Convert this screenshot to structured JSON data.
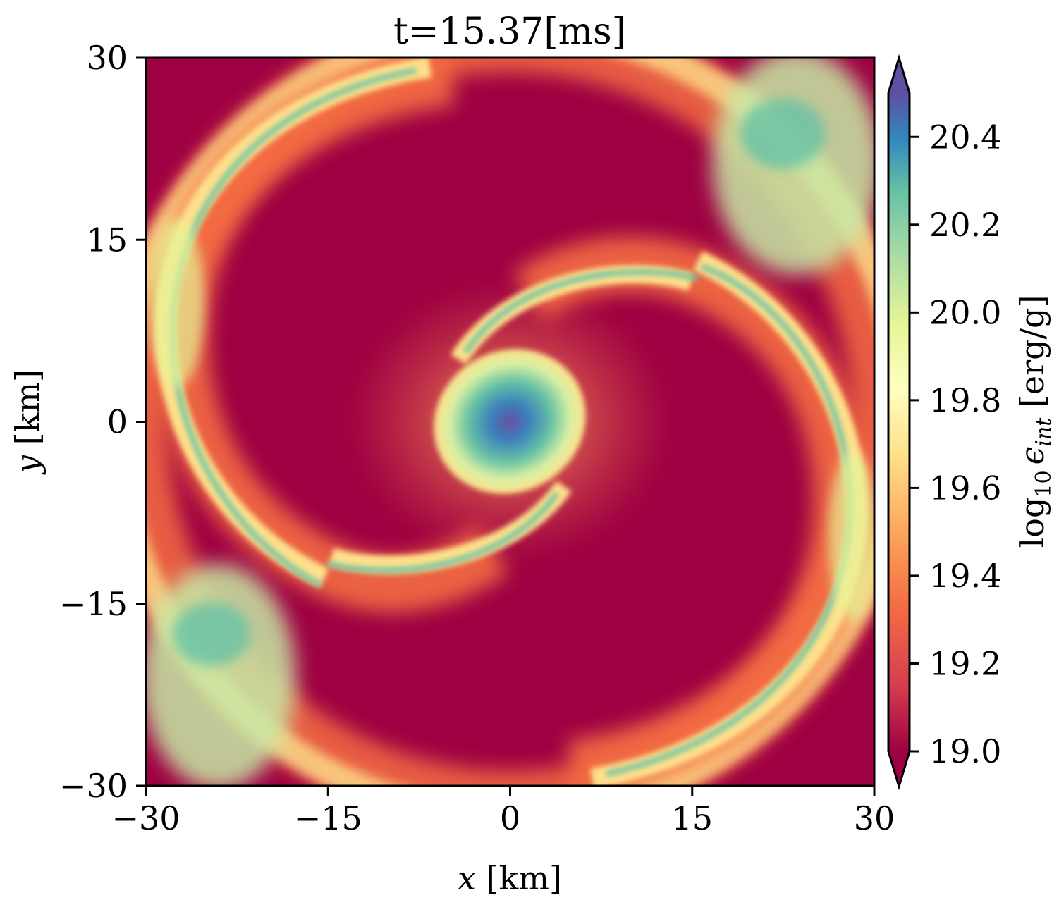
{
  "chart_data": {
    "type": "heatmap",
    "title": "t=15.37[ms]",
    "xlabel": {
      "var": "x",
      "unit": " [km]"
    },
    "ylabel": {
      "var": "y",
      "unit": " [km]"
    },
    "xlim": [
      -30,
      30
    ],
    "ylim": [
      -30,
      30
    ],
    "xticks": [
      "−30",
      "−15",
      "0",
      "15",
      "30"
    ],
    "yticks": [
      "−30",
      "−15",
      "0",
      "15",
      "30"
    ],
    "colorbar": {
      "label_prefix": "log",
      "label_sub": "10",
      "label_symbol": "ϵ",
      "label_symbol_sub": "int",
      "label_unit": " [erg/g]",
      "range": [
        19.0,
        20.4
      ],
      "ticks": [
        "19.0",
        "19.2",
        "19.4",
        "19.6",
        "19.8",
        "20.0",
        "20.2",
        "20.4"
      ],
      "colormap": "Spectral",
      "extend": "both"
    },
    "colors": {
      "low": "#9e0142",
      "mid_low": "#f46d43",
      "mid": "#ffffbf",
      "mid_high": "#66c2a5",
      "high": "#5e4fa2"
    }
  }
}
